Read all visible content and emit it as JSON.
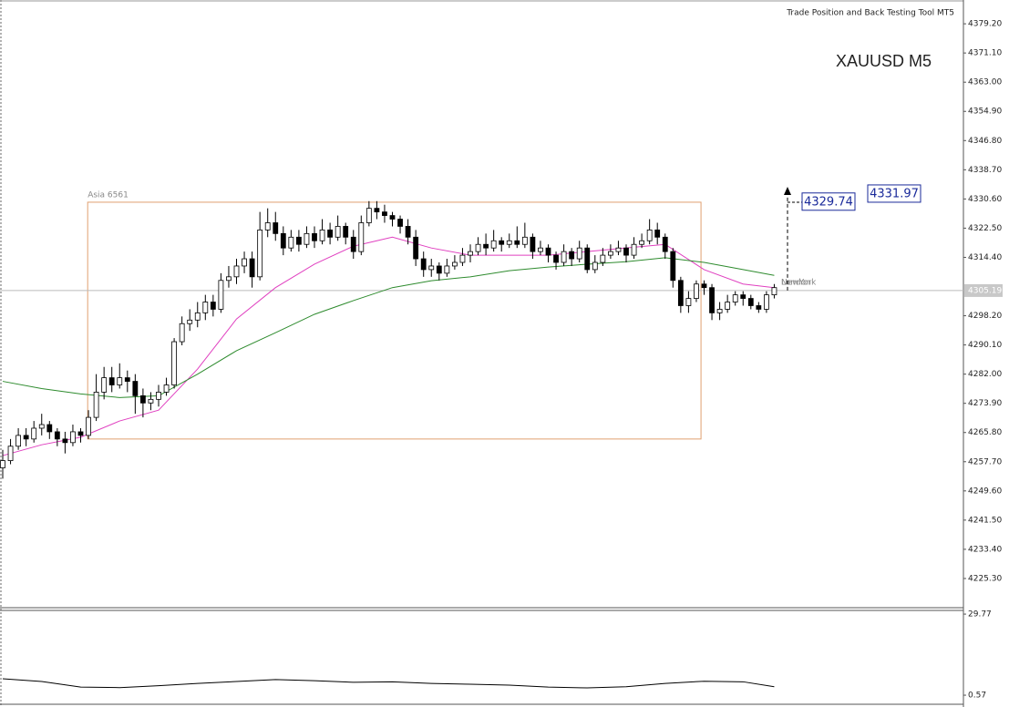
{
  "chart_data": [
    {
      "type": "candlestick",
      "title": "XAUUSD M5",
      "tool_label": "Trade Position and Back Testing Tool MT5",
      "ylim": [
        4217.2,
        4385.8
      ],
      "yticks": [
        {
          "value": 4379.2,
          "label": "4379.20"
        },
        {
          "value": 4371.1,
          "label": "4371.10"
        },
        {
          "value": 4363.0,
          "label": "4363.00"
        },
        {
          "value": 4354.9,
          "label": "4354.90"
        },
        {
          "value": 4346.8,
          "label": "4346.80"
        },
        {
          "value": 4338.7,
          "label": "4338.70"
        },
        {
          "value": 4330.6,
          "label": "4330.60"
        },
        {
          "value": 4322.5,
          "label": "4322.50"
        },
        {
          "value": 4314.4,
          "label": "4314.40"
        },
        {
          "value": 4298.2,
          "label": "4298.20"
        },
        {
          "value": 4290.1,
          "label": "4290.10"
        },
        {
          "value": 4282.0,
          "label": "4282.00"
        },
        {
          "value": 4273.9,
          "label": "4273.90"
        },
        {
          "value": 4265.8,
          "label": "4265.80"
        },
        {
          "value": 4257.7,
          "label": "4257.70"
        },
        {
          "value": 4249.6,
          "label": "4249.60"
        },
        {
          "value": 4241.5,
          "label": "4241.50"
        },
        {
          "value": 4233.4,
          "label": "4233.40"
        },
        {
          "value": 4225.3,
          "label": "4225.30"
        }
      ],
      "ohlc": [
        [
          4256,
          4261,
          4253,
          4258
        ],
        [
          4258,
          4264,
          4257,
          4262
        ],
        [
          4262,
          4267,
          4261,
          4265
        ],
        [
          4265,
          4267,
          4262,
          4264
        ],
        [
          4264,
          4269,
          4263,
          4267
        ],
        [
          4267,
          4271,
          4265,
          4268
        ],
        [
          4268,
          4269,
          4264,
          4266
        ],
        [
          4266,
          4267,
          4262,
          4264
        ],
        [
          4264,
          4266,
          4260,
          4263
        ],
        [
          4263,
          4268,
          4262,
          4266
        ],
        [
          4266,
          4267,
          4263,
          4265
        ],
        [
          4265,
          4272,
          4264,
          4270
        ],
        [
          4270,
          4282,
          4269,
          4277
        ],
        [
          4277,
          4284,
          4275,
          4281
        ],
        [
          4281,
          4284,
          4277,
          4279
        ],
        [
          4279,
          4285,
          4278,
          4281
        ],
        [
          4281,
          4283,
          4277,
          4280
        ],
        [
          4280,
          4282,
          4271,
          4276
        ],
        [
          4276,
          4278,
          4270,
          4274
        ],
        [
          4274,
          4277,
          4272,
          4275
        ],
        [
          4275,
          4279,
          4273,
          4277
        ],
        [
          4277,
          4281,
          4276,
          4279
        ],
        [
          4279,
          4292,
          4278,
          4291
        ],
        [
          4291,
          4298,
          4290,
          4296
        ],
        [
          4296,
          4300,
          4294,
          4297
        ],
        [
          4297,
          4302,
          4295,
          4299
        ],
        [
          4299,
          4304,
          4297,
          4302
        ],
        [
          4302,
          4304,
          4298,
          4300
        ],
        [
          4300,
          4310,
          4299,
          4308
        ],
        [
          4308,
          4312,
          4306,
          4309
        ],
        [
          4309,
          4314,
          4307,
          4312
        ],
        [
          4312,
          4316,
          4310,
          4314
        ],
        [
          4314,
          4316,
          4306,
          4309
        ],
        [
          4309,
          4327,
          4308,
          4322
        ],
        [
          4322,
          4328,
          4320,
          4324
        ],
        [
          4324,
          4327,
          4319,
          4321
        ],
        [
          4321,
          4323,
          4315,
          4317
        ],
        [
          4317,
          4322,
          4316,
          4320
        ],
        [
          4320,
          4322,
          4316,
          4318
        ],
        [
          4318,
          4323,
          4317,
          4321
        ],
        [
          4321,
          4323,
          4317,
          4319
        ],
        [
          4319,
          4325,
          4318,
          4322
        ],
        [
          4322,
          4324,
          4318,
          4320
        ],
        [
          4320,
          4326,
          4319,
          4323
        ],
        [
          4323,
          4324,
          4318,
          4320
        ],
        [
          4320,
          4322,
          4314,
          4316
        ],
        [
          4316,
          4326,
          4315,
          4324
        ],
        [
          4324,
          4330,
          4323,
          4328
        ],
        [
          4328,
          4330,
          4325,
          4327
        ],
        [
          4327,
          4329,
          4324,
          4326
        ],
        [
          4326,
          4327,
          4323,
          4325
        ],
        [
          4325,
          4326,
          4321,
          4323
        ],
        [
          4323,
          4325,
          4318,
          4320
        ],
        [
          4320,
          4322,
          4312,
          4314
        ],
        [
          4314,
          4316,
          4309,
          4311
        ],
        [
          4311,
          4314,
          4309,
          4312
        ],
        [
          4312,
          4313,
          4308,
          4310
        ],
        [
          4310,
          4314,
          4309,
          4312
        ],
        [
          4312,
          4315,
          4311,
          4313
        ],
        [
          4313,
          4317,
          4312,
          4315
        ],
        [
          4315,
          4318,
          4313,
          4316
        ],
        [
          4316,
          4320,
          4315,
          4318
        ],
        [
          4318,
          4321,
          4315,
          4317
        ],
        [
          4317,
          4322,
          4316,
          4319
        ],
        [
          4319,
          4320,
          4316,
          4318
        ],
        [
          4318,
          4321,
          4317,
          4319
        ],
        [
          4319,
          4323,
          4317,
          4318
        ],
        [
          4318,
          4324,
          4317,
          4320
        ],
        [
          4320,
          4321,
          4314,
          4316
        ],
        [
          4316,
          4319,
          4315,
          4317
        ],
        [
          4317,
          4318,
          4313,
          4315
        ],
        [
          4315,
          4316,
          4311,
          4313
        ],
        [
          4313,
          4318,
          4312,
          4316
        ],
        [
          4316,
          4317,
          4312,
          4314
        ],
        [
          4314,
          4319,
          4313,
          4317
        ],
        [
          4317,
          4318,
          4310,
          4311
        ],
        [
          4311,
          4315,
          4310,
          4313
        ],
        [
          4313,
          4317,
          4312,
          4315
        ],
        [
          4315,
          4318,
          4314,
          4316
        ],
        [
          4316,
          4319,
          4315,
          4317
        ],
        [
          4317,
          4318,
          4313,
          4315
        ],
        [
          4315,
          4320,
          4314,
          4318
        ],
        [
          4318,
          4321,
          4317,
          4319
        ],
        [
          4319,
          4325,
          4318,
          4322
        ],
        [
          4322,
          4324,
          4318,
          4320
        ],
        [
          4320,
          4321,
          4314,
          4316
        ],
        [
          4316,
          4317,
          4306,
          4308
        ],
        [
          4308,
          4309,
          4299,
          4301
        ],
        [
          4301,
          4305,
          4299,
          4303
        ],
        [
          4303,
          4308,
          4302,
          4307
        ],
        [
          4307,
          4308,
          4304,
          4306
        ],
        [
          4306,
          4307,
          4297,
          4299
        ],
        [
          4299,
          4302,
          4297,
          4300
        ],
        [
          4300,
          4304,
          4299,
          4302
        ],
        [
          4302,
          4305,
          4301,
          4304
        ],
        [
          4304,
          4305,
          4301,
          4303
        ],
        [
          4303,
          4304,
          4300,
          4301
        ],
        [
          4301,
          4302,
          4299,
          4300
        ],
        [
          4300,
          4305,
          4299,
          4304
        ],
        [
          4304,
          4307,
          4303,
          4306
        ]
      ],
      "moving_averages": [
        {
          "color": "#e040c0",
          "x": [
            0,
            5,
            10,
            15,
            20,
            25,
            30,
            35,
            40,
            45,
            50,
            55,
            60,
            65,
            70,
            75,
            80,
            85,
            90,
            95,
            99
          ],
          "values": [
            4259.4,
            4262.4,
            4264.5,
            4269,
            4272,
            4283.4,
            4297.3,
            4306,
            4312.5,
            4317.5,
            4320,
            4317,
            4315,
            4315,
            4315,
            4316,
            4317,
            4318,
            4311,
            4307,
            4306
          ]
        },
        {
          "color": "#2e8b2e",
          "x": [
            0,
            5,
            10,
            15,
            20,
            25,
            30,
            35,
            40,
            45,
            50,
            55,
            60,
            65,
            70,
            75,
            80,
            85,
            90,
            95,
            99
          ],
          "values": [
            4280,
            4278,
            4276.5,
            4275.5,
            4276,
            4282,
            4288.5,
            4293.5,
            4298.6,
            4302.4,
            4306,
            4307.9,
            4309,
            4310.7,
            4311.7,
            4312.5,
            4313.2,
            4314.3,
            4313,
            4311,
            4309.4
          ]
        }
      ],
      "session_box": {
        "label": "Asia 6561",
        "top": 4329.7,
        "bottom": 4264,
        "x_start": 10.9,
        "x_end": 89.6,
        "color": "#e0a070"
      },
      "session_labels": [
        "London",
        "NewYork"
      ],
      "current_price": {
        "value": 4305.19,
        "label": "4305.19"
      },
      "trade_levels": [
        {
          "value": 4329.74,
          "label": "4329.74"
        },
        {
          "value": 4331.97,
          "label": "4331.97"
        }
      ]
    },
    {
      "type": "line",
      "ylim": [
        -2.7,
        31.1
      ],
      "yticks": [
        29.77,
        0.57
      ],
      "x": [
        0,
        5,
        10,
        15,
        20,
        25,
        30,
        35,
        40,
        45,
        50,
        55,
        60,
        65,
        70,
        75,
        80,
        85,
        90,
        95,
        99
      ],
      "values": [
        6.5,
        5.5,
        3.5,
        3.3,
        4.0,
        4.8,
        5.5,
        6.2,
        5.8,
        5.2,
        5.4,
        4.8,
        4.5,
        4.2,
        3.5,
        3.2,
        3.6,
        4.8,
        5.6,
        5.4,
        3.6
      ]
    }
  ]
}
